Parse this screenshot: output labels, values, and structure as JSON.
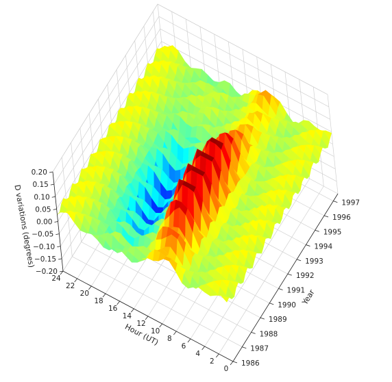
{
  "chart_data": {
    "type": "surface3d",
    "title": "",
    "xlabel": "Hour (UT)",
    "ylabel": "Year",
    "zlabel": "D variations (degrees)",
    "x_ticks": [
      "0",
      "2",
      "4",
      "6",
      "8",
      "10",
      "12",
      "14",
      "16",
      "18",
      "20",
      "22",
      "24"
    ],
    "y_ticks": [
      "1986",
      "1987",
      "1988",
      "1989",
      "1990",
      "1991",
      "1992",
      "1993",
      "1994",
      "1995",
      "1996",
      "1997"
    ],
    "z_ticks": [
      "0.20",
      "0.15",
      "0.10",
      "0.05",
      "0.00",
      "−0.05",
      "−0.10",
      "−0.15",
      "−0.20"
    ],
    "xlim": [
      0,
      24
    ],
    "ylim": [
      1986,
      1997.5
    ],
    "zlim": [
      -0.2,
      0.2
    ],
    "colormap": "jet",
    "grid": true,
    "surface_profile": {
      "description_hours": [
        0,
        2,
        4,
        6,
        8,
        10,
        12,
        14,
        16,
        18,
        20,
        22,
        24
      ],
      "mean_d_variation": [
        0.02,
        0.03,
        0.05,
        0.09,
        0.14,
        0.16,
        0.06,
        -0.1,
        -0.14,
        -0.08,
        -0.02,
        0.03,
        0.05
      ]
    }
  }
}
